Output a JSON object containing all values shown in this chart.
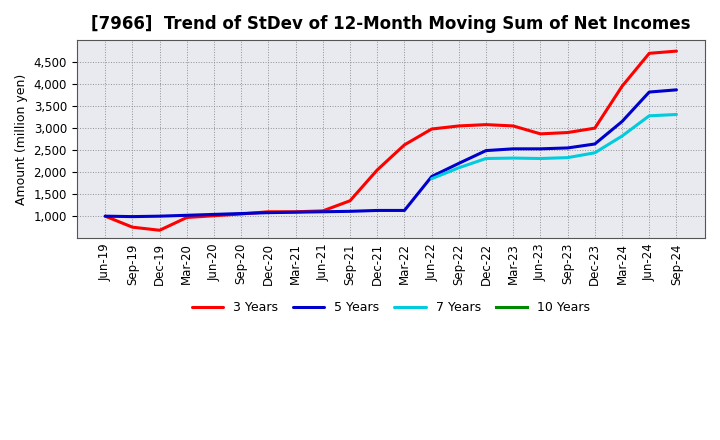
{
  "title": "[7966]  Trend of StDev of 12-Month Moving Sum of Net Incomes",
  "ylabel": "Amount (million yen)",
  "background_color": "#ffffff",
  "plot_bg_color": "#e8eaf0",
  "grid_color": "#aaaaaa",
  "x_labels": [
    "Jun-19",
    "Sep-19",
    "Dec-19",
    "Mar-20",
    "Jun-20",
    "Sep-20",
    "Dec-20",
    "Mar-21",
    "Jun-21",
    "Sep-21",
    "Dec-21",
    "Mar-22",
    "Jun-22",
    "Sep-22",
    "Dec-22",
    "Mar-23",
    "Jun-23",
    "Sep-23",
    "Dec-23",
    "Mar-24",
    "Jun-24",
    "Sep-24"
  ],
  "series": {
    "3 Years": {
      "color": "#ff0000",
      "data": [
        1000,
        750,
        680,
        970,
        1010,
        1050,
        1100,
        1100,
        1120,
        1350,
        2050,
        2620,
        2980,
        3050,
        3080,
        3050,
        2870,
        2900,
        3000,
        3950,
        4700,
        4750
      ]
    },
    "5 Years": {
      "color": "#0000cc",
      "data": [
        1000,
        990,
        1000,
        1020,
        1040,
        1060,
        1080,
        1090,
        1100,
        1110,
        1130,
        1130,
        1900,
        2200,
        2490,
        2530,
        2530,
        2550,
        2640,
        3150,
        3820,
        3870
      ]
    },
    "7 Years": {
      "color": "#00ccdd",
      "data": [
        null,
        null,
        null,
        null,
        null,
        null,
        null,
        null,
        null,
        null,
        null,
        null,
        1850,
        2100,
        2310,
        2320,
        2310,
        2330,
        2440,
        2820,
        3280,
        3310
      ]
    },
    "10 Years": {
      "color": "#008800",
      "data": [
        null,
        null,
        null,
        null,
        null,
        null,
        null,
        null,
        null,
        null,
        null,
        null,
        null,
        null,
        null,
        null,
        null,
        null,
        null,
        null,
        null,
        null
      ]
    }
  },
  "ylim": [
    500,
    5000
  ],
  "yticks": [
    1000,
    1500,
    2000,
    2500,
    3000,
    3500,
    4000,
    4500
  ],
  "title_fontsize": 12,
  "label_fontsize": 9,
  "tick_fontsize": 8.5
}
